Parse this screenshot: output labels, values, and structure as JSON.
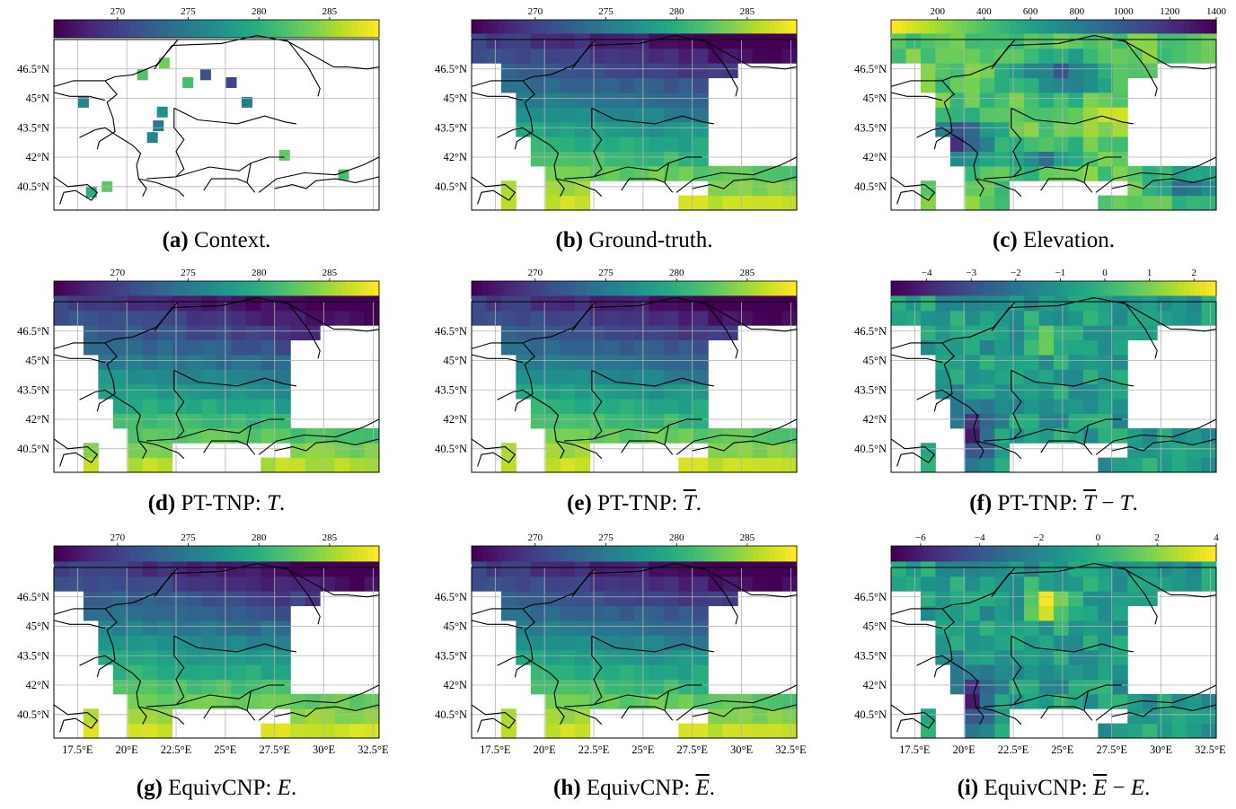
{
  "figure": {
    "lat_ticks": [
      "46.5°N",
      "45°N",
      "43.5°N",
      "42°N",
      "40.5°N"
    ],
    "lon_ticks": [
      "17.5°E",
      "20°E",
      "22.5°E",
      "25°E",
      "27.5°E",
      "30°E",
      "32.5°E"
    ],
    "lat_range": [
      39.3,
      48.0
    ],
    "lon_range": [
      16.3,
      32.8
    ]
  },
  "chart_data": [
    {
      "id": "a",
      "type": "heatmap",
      "subtitle_label": "(a)",
      "subtitle_text": "Context.",
      "colorbar_ticks": [
        "270",
        "275",
        "280",
        "285"
      ],
      "colorbar_range": [
        265.5,
        288.5
      ],
      "colormap": "viridis",
      "map": "context"
    },
    {
      "id": "b",
      "type": "heatmap",
      "subtitle_label": "(b)",
      "subtitle_text": "Ground-truth.",
      "colorbar_ticks": [
        "270",
        "275",
        "280",
        "285"
      ],
      "colorbar_range": [
        265.5,
        288.5
      ],
      "colormap": "viridis",
      "map": "temperature"
    },
    {
      "id": "c",
      "type": "heatmap",
      "subtitle_label": "(c)",
      "subtitle_text": "Elevation.",
      "colorbar_ticks": [
        "200",
        "400",
        "600",
        "800",
        "1000",
        "1200",
        "1400"
      ],
      "colorbar_range": [
        0,
        1400
      ],
      "colormap": "viridis_r",
      "map": "elevation"
    },
    {
      "id": "d",
      "type": "heatmap",
      "subtitle_label": "(d)",
      "subtitle_text": "PT-TNP: ",
      "subtitle_math": "T",
      "tilde": false,
      "minus": false,
      "colorbar_ticks": [
        "270",
        "275",
        "280",
        "285"
      ],
      "colorbar_range": [
        265.5,
        288.5
      ],
      "colormap": "viridis",
      "map": "temperature"
    },
    {
      "id": "e",
      "type": "heatmap",
      "subtitle_label": "(e)",
      "subtitle_text": "PT-TNP: ",
      "subtitle_math": "T",
      "tilde": true,
      "minus": false,
      "colorbar_ticks": [
        "270",
        "275",
        "280",
        "285"
      ],
      "colorbar_range": [
        265.5,
        288.5
      ],
      "colormap": "viridis",
      "map": "temperature"
    },
    {
      "id": "f",
      "type": "heatmap",
      "subtitle_label": "(f)",
      "subtitle_text": "PT-TNP: ",
      "subtitle_math": "T",
      "tilde": true,
      "minus": true,
      "colorbar_ticks": [
        "−4",
        "−3",
        "−2",
        "−1",
        "0",
        "1",
        "2"
      ],
      "colorbar_range": [
        -4.8,
        2.5
      ],
      "colormap": "viridis",
      "map": "difference"
    },
    {
      "id": "g",
      "type": "heatmap",
      "subtitle_label": "(g)",
      "subtitle_text": "EquivCNP: ",
      "subtitle_math": "E",
      "tilde": false,
      "minus": false,
      "colorbar_ticks": [
        "270",
        "275",
        "280",
        "285"
      ],
      "colorbar_range": [
        265.5,
        288.5
      ],
      "colormap": "viridis",
      "map": "temperature"
    },
    {
      "id": "h",
      "type": "heatmap",
      "subtitle_label": "(h)",
      "subtitle_text": "EquivCNP: ",
      "subtitle_math": "E",
      "tilde": true,
      "minus": false,
      "colorbar_ticks": [
        "270",
        "275",
        "280",
        "285"
      ],
      "colorbar_range": [
        265.5,
        288.5
      ],
      "colormap": "viridis",
      "map": "temperature"
    },
    {
      "id": "i",
      "type": "heatmap",
      "subtitle_label": "(i)",
      "subtitle_text": "EquivCNP: ",
      "subtitle_math": "E",
      "tilde": true,
      "minus": true,
      "colorbar_ticks": [
        "−6",
        "−4",
        "−2",
        "0",
        "2",
        "4"
      ],
      "colorbar_range": [
        -7,
        4
      ],
      "colormap": "viridis",
      "map": "difference"
    }
  ]
}
